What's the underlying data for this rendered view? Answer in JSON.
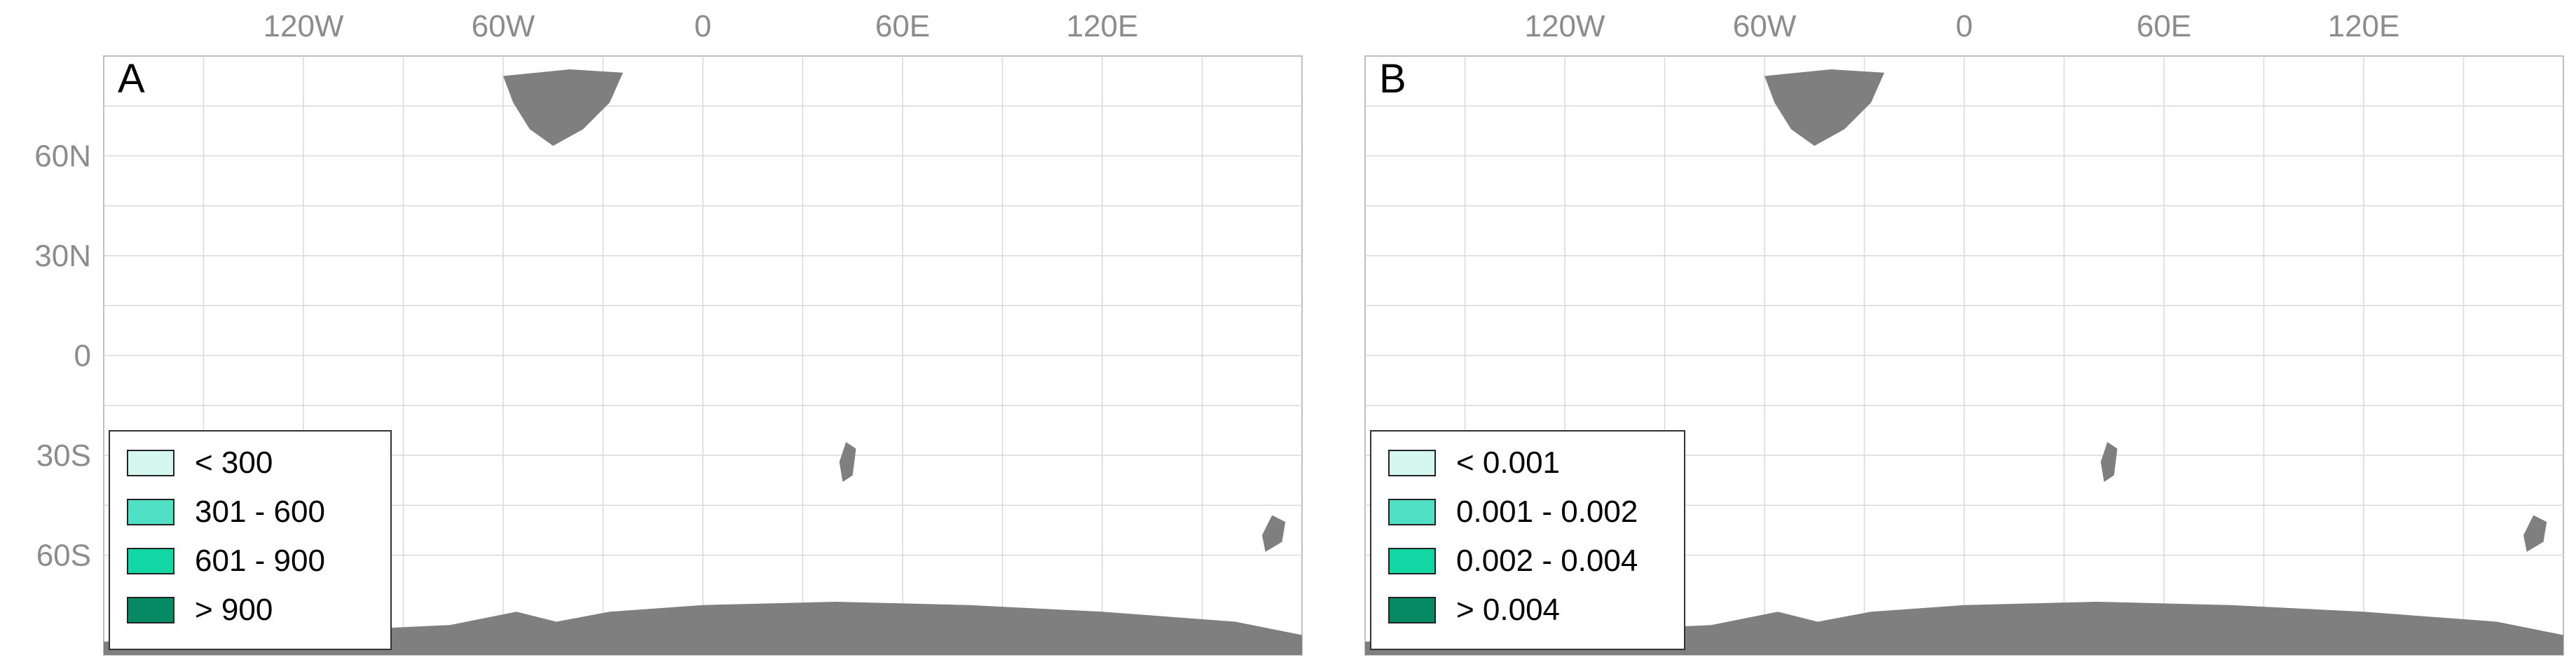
{
  "lon_labels": [
    "120W",
    "60W",
    "0",
    "60E",
    "120E"
  ],
  "lat_labels": [
    "60N",
    "30N",
    "0",
    "30S",
    "60S"
  ],
  "colors": {
    "land_gray": "#7f7f7f",
    "grid": "#d9d9d9",
    "frame": "#bfbfbf",
    "class_1": "#d6f7ef",
    "class_2": "#4fe0c6",
    "class_3": "#12d6a4",
    "class_4": "#058a63"
  },
  "panels": [
    {
      "id": "A",
      "label": "A",
      "legend": [
        {
          "label": "< 300",
          "color": "#d6f7ef"
        },
        {
          "label": "301 - 600",
          "color": "#4fe0c6"
        },
        {
          "label": "601 - 900",
          "color": "#12d6a4"
        },
        {
          "label": "> 900",
          "color": "#058a63"
        }
      ]
    },
    {
      "id": "B",
      "label": "B",
      "legend": [
        {
          "label": "< 0.001",
          "color": "#d6f7ef"
        },
        {
          "label": "0.001 - 0.002",
          "color": "#4fe0c6"
        },
        {
          "label": "0.002 - 0.004",
          "color": "#12d6a4"
        },
        {
          "label": "> 0.004",
          "color": "#058a63"
        }
      ]
    }
  ]
}
